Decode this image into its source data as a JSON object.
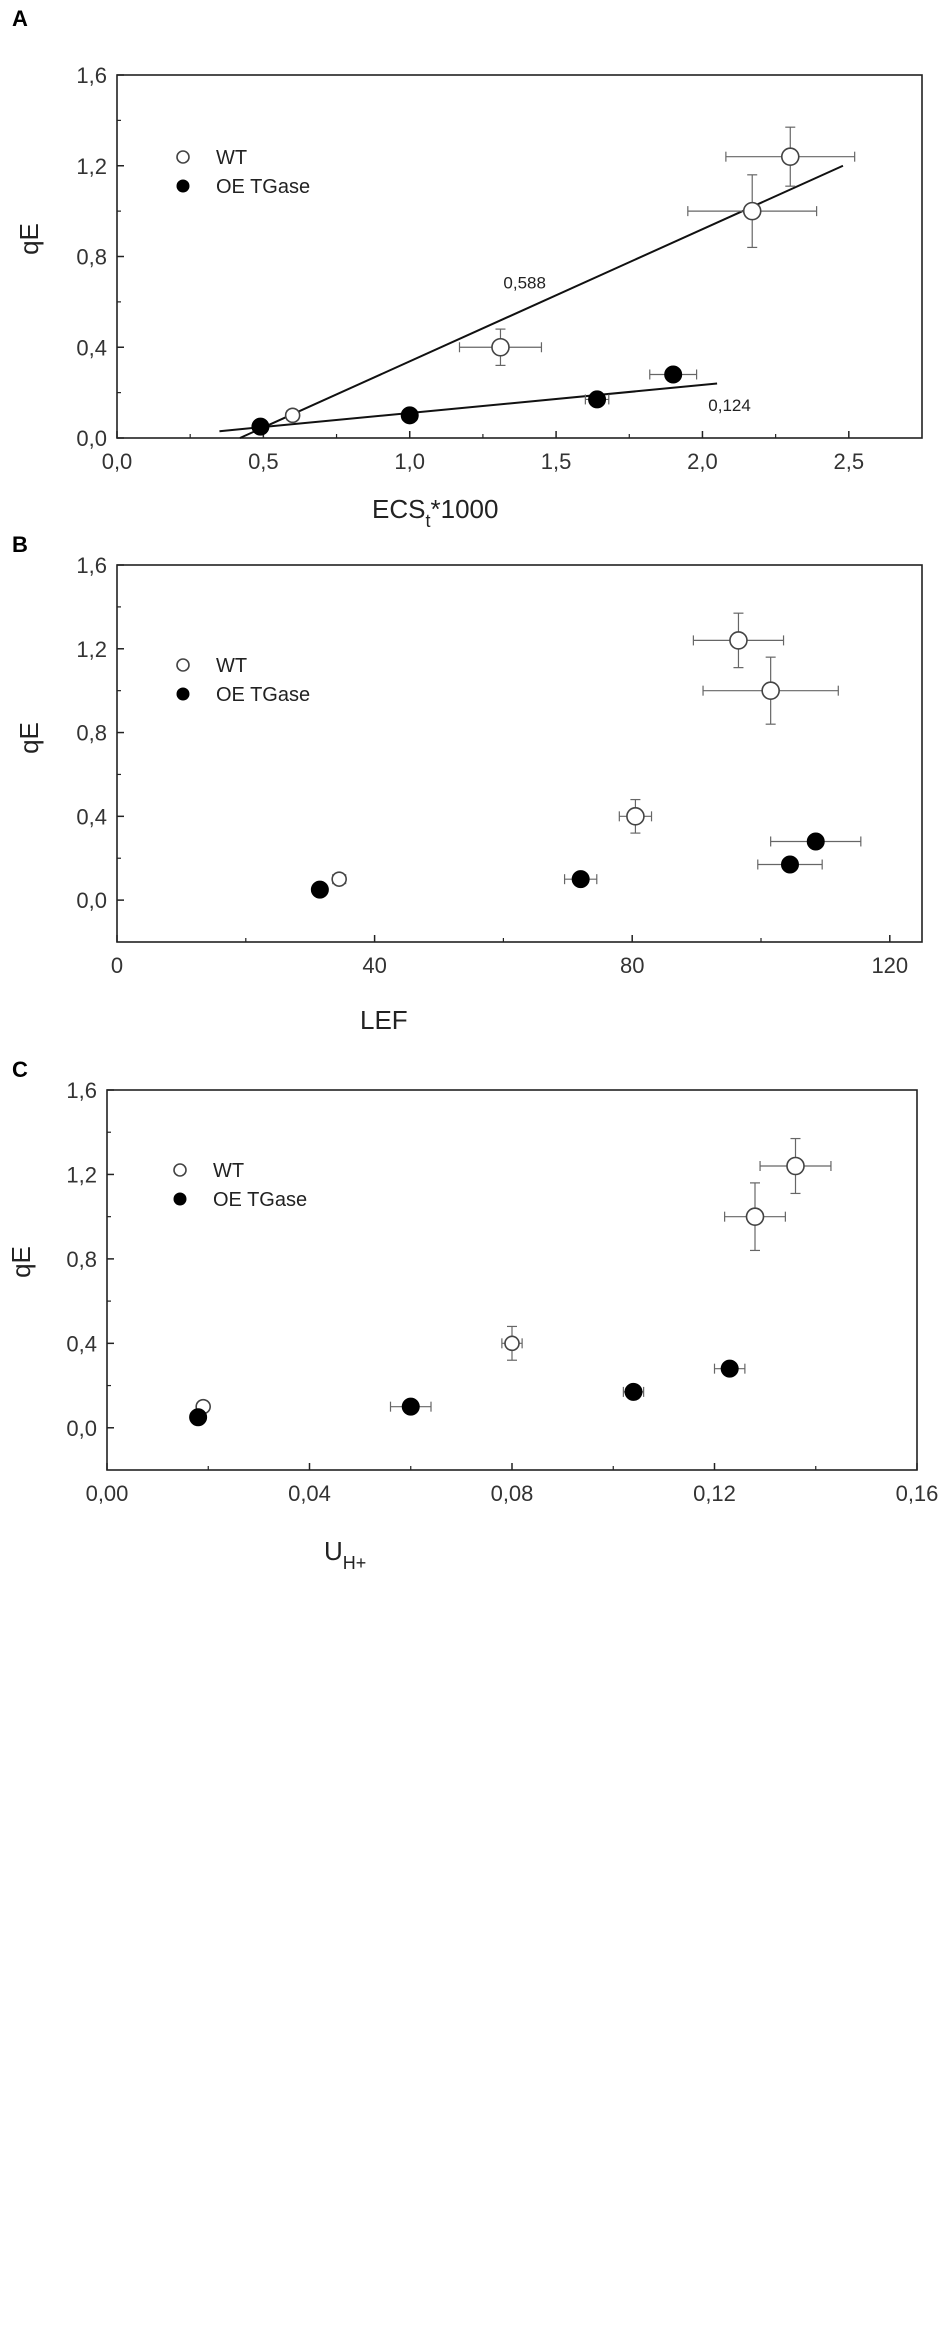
{
  "chart_data": [
    {
      "panel": "A",
      "type": "scatter",
      "xlabel": "ECS",
      "xlabel_sub": "t",
      "xlabel_suffix": "*1000",
      "ylabel": "qE",
      "xlim": [
        0,
        2.75
      ],
      "ylim": [
        0,
        1.6
      ],
      "xticks": [
        0,
        0.5,
        1.0,
        1.5,
        2.0,
        2.5
      ],
      "xtick_labels": [
        "0,0",
        "0,5",
        "1,0",
        "1,5",
        "2,0",
        "2,5"
      ],
      "yticks": [
        0,
        0.4,
        0.8,
        1.2,
        1.6
      ],
      "ytick_labels": [
        "0,0",
        "0,4",
        "0,8",
        "1,2",
        "1,6"
      ],
      "grid": false,
      "legend_position": "top-left",
      "series": [
        {
          "name": "WT",
          "marker": "open-circle",
          "points": [
            {
              "x": 0.6,
              "y": 0.1,
              "xerr": 0.02,
              "yerr": 0.02
            },
            {
              "x": 1.31,
              "y": 0.4,
              "xerr": 0.14,
              "yerr": 0.08
            },
            {
              "x": 2.17,
              "y": 1.0,
              "xerr": 0.22,
              "yerr": 0.16
            },
            {
              "x": 2.3,
              "y": 1.24,
              "xerr": 0.22,
              "yerr": 0.13
            }
          ]
        },
        {
          "name": "OE TGase",
          "marker": "filled-circle",
          "points": [
            {
              "x": 0.49,
              "y": 0.05,
              "xerr": 0,
              "yerr": 0
            },
            {
              "x": 1.0,
              "y": 0.1,
              "xerr": 0,
              "yerr": 0
            },
            {
              "x": 1.64,
              "y": 0.17,
              "xerr": 0.04,
              "yerr": 0
            },
            {
              "x": 1.9,
              "y": 0.28,
              "xerr": 0.08,
              "yerr": 0
            }
          ]
        }
      ],
      "fit_lines": [
        {
          "series": "WT",
          "from": [
            0.42,
            0.0
          ],
          "to": [
            2.48,
            1.2
          ],
          "slope_label": "0,588",
          "label_at": [
            1.32,
            0.66
          ]
        },
        {
          "series": "OE TGase",
          "from": [
            0.35,
            0.03
          ],
          "to": [
            2.05,
            0.24
          ],
          "slope_label": "0,124",
          "label_at": [
            2.02,
            0.12
          ]
        }
      ]
    },
    {
      "panel": "B",
      "type": "scatter",
      "xlabel": "LEF",
      "ylabel": "qE",
      "xlim": [
        0,
        125
      ],
      "ylim": [
        -0.2,
        1.6
      ],
      "xticks": [
        0,
        40,
        80,
        120
      ],
      "xtick_labels": [
        "0",
        "40",
        "80",
        "120"
      ],
      "yticks": [
        0,
        0.4,
        0.8,
        1.2,
        1.6
      ],
      "ytick_labels": [
        "0,0",
        "0,4",
        "0,8",
        "1,2",
        "1,6"
      ],
      "grid": false,
      "legend_position": "top-left",
      "series": [
        {
          "name": "WT",
          "marker": "open-circle",
          "points": [
            {
              "x": 34.5,
              "y": 0.1,
              "xerr": 1.0,
              "yerr": 0.02
            },
            {
              "x": 80.5,
              "y": 0.4,
              "xerr": 2.5,
              "yerr": 0.08
            },
            {
              "x": 101.5,
              "y": 1.0,
              "xerr": 10.5,
              "yerr": 0.16
            },
            {
              "x": 96.5,
              "y": 1.24,
              "xerr": 7.0,
              "yerr": 0.13
            }
          ]
        },
        {
          "name": "OE TGase",
          "marker": "filled-circle",
          "points": [
            {
              "x": 31.5,
              "y": 0.05,
              "xerr": 0,
              "yerr": 0
            },
            {
              "x": 72.0,
              "y": 0.1,
              "xerr": 2.5,
              "yerr": 0
            },
            {
              "x": 104.5,
              "y": 0.17,
              "xerr": 5.0,
              "yerr": 0
            },
            {
              "x": 108.5,
              "y": 0.28,
              "xerr": 7.0,
              "yerr": 0
            }
          ]
        }
      ]
    },
    {
      "panel": "C",
      "type": "scatter",
      "xlabel": "U",
      "xlabel_sub": "H+",
      "xlabel_suffix": "",
      "ylabel": "qE",
      "xlim": [
        0,
        0.16
      ],
      "ylim": [
        -0.2,
        1.6
      ],
      "xticks": [
        0,
        0.04,
        0.08,
        0.12,
        0.16
      ],
      "xtick_labels": [
        "0,00",
        "0,04",
        "0,08",
        "0,12",
        "0,16"
      ],
      "yticks": [
        0,
        0.4,
        0.8,
        1.2,
        1.6
      ],
      "ytick_labels": [
        "0,0",
        "0,4",
        "0,8",
        "1,2",
        "1,6"
      ],
      "grid": false,
      "legend_position": "top-left",
      "series": [
        {
          "name": "WT",
          "marker": "open-circle",
          "points": [
            {
              "x": 0.019,
              "y": 0.1,
              "xerr": 0.001,
              "yerr": 0.02
            },
            {
              "x": 0.08,
              "y": 0.4,
              "xerr": 0.002,
              "yerr": 0.08
            },
            {
              "x": 0.128,
              "y": 1.0,
              "xerr": 0.006,
              "yerr": 0.16
            },
            {
              "x": 0.136,
              "y": 1.24,
              "xerr": 0.007,
              "yerr": 0.13
            }
          ]
        },
        {
          "name": "OE TGase",
          "marker": "filled-circle",
          "points": [
            {
              "x": 0.018,
              "y": 0.05,
              "xerr": 0,
              "yerr": 0
            },
            {
              "x": 0.06,
              "y": 0.1,
              "xerr": 0.004,
              "yerr": 0
            },
            {
              "x": 0.104,
              "y": 0.17,
              "xerr": 0.002,
              "yerr": 0
            },
            {
              "x": 0.123,
              "y": 0.28,
              "xerr": 0.003,
              "yerr": 0
            }
          ]
        }
      ]
    }
  ]
}
